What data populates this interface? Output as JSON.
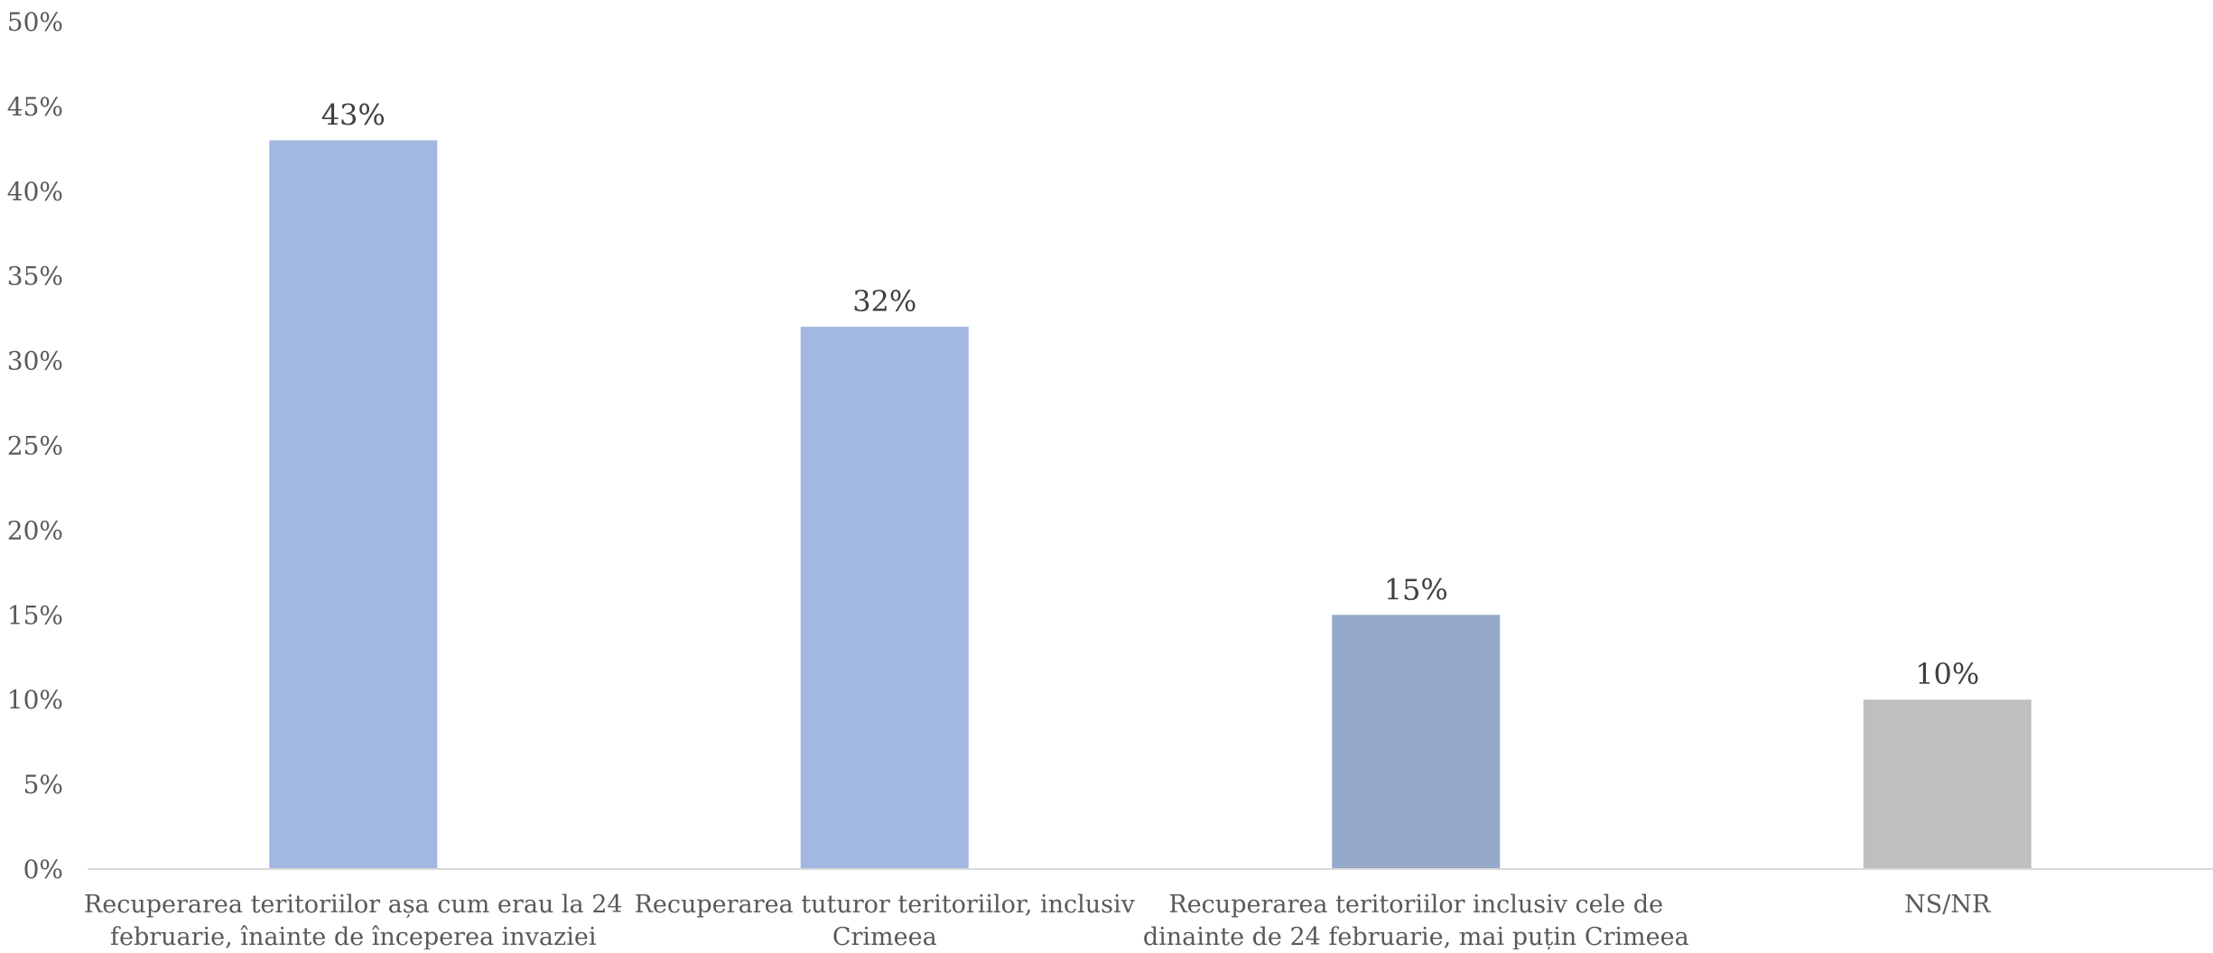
{
  "chart_data": {
    "type": "bar",
    "categories": [
      [
        "Recuperarea teritoriilor așa cum erau la 24",
        "februarie, înainte de începerea invaziei"
      ],
      [
        "Recuperarea tuturor teritoriilor, inclusiv",
        "Crimeea"
      ],
      [
        "Recuperarea teritoriilor inclusiv cele de",
        "dinainte de 24 februarie, mai puțin Crimeea"
      ],
      [
        "NS/NR"
      ]
    ],
    "values": [
      43,
      32,
      15,
      10
    ],
    "data_labels": [
      "43%",
      "32%",
      "15%",
      "10%"
    ],
    "bar_colors": [
      "#a2b8e0",
      "#a2b8e0",
      "#97a9cb",
      "#bfbfbf"
    ],
    "ylim": [
      0,
      50
    ],
    "yticks": [
      0,
      5,
      10,
      15,
      20,
      25,
      30,
      35,
      40,
      45,
      50
    ],
    "ytick_labels": [
      "0%",
      "5%",
      "10%",
      "15%",
      "20%",
      "25%",
      "30%",
      "35%",
      "40%",
      "45%",
      "50%"
    ],
    "title": "",
    "xlabel": "",
    "ylabel": "",
    "grid": false,
    "legend": "none",
    "colors": {
      "axis": "#d9d9d9",
      "tick_text": "#595959",
      "label_text": "#404040"
    }
  }
}
